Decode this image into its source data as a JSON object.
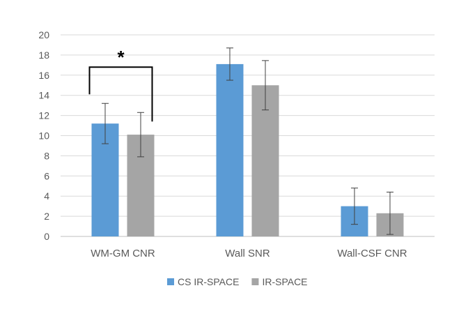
{
  "chart_data": {
    "type": "bar",
    "title": "",
    "xlabel": "",
    "ylabel": "",
    "ylim": [
      0,
      20
    ],
    "yticks": [
      0,
      2,
      4,
      6,
      8,
      10,
      12,
      14,
      16,
      18,
      20
    ],
    "grid": true,
    "legend_position": "bottom",
    "categories": [
      "WM-GM CNR",
      "Wall SNR",
      "Wall-CSF CNR"
    ],
    "series": [
      {
        "name": "CS IR-SPACE",
        "color": "#5B9BD5",
        "values": [
          11.2,
          17.1,
          3.0
        ],
        "errors": [
          2.0,
          1.6,
          1.8
        ]
      },
      {
        "name": "IR-SPACE",
        "color": "#A5A5A5",
        "values": [
          10.1,
          15.0,
          2.3
        ],
        "errors": [
          2.2,
          2.45,
          2.1
        ]
      }
    ],
    "annotations": [
      {
        "type": "significance",
        "category_index": 0,
        "label": "*",
        "y": 16.8
      }
    ]
  }
}
